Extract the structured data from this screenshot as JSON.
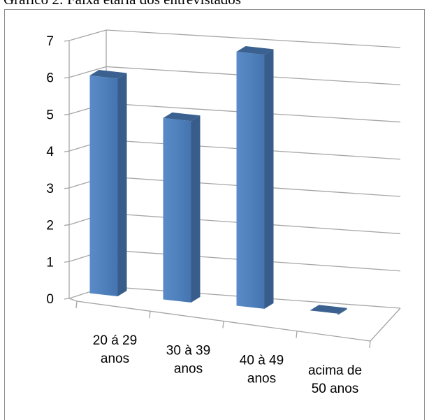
{
  "chart_data": {
    "type": "bar",
    "title": "Gráfico 2: Faixa etária dos entrevistados",
    "categories": [
      [
        "20 á 29",
        "anos"
      ],
      [
        "30 à 39",
        "anos"
      ],
      [
        "40 à 49",
        "anos"
      ],
      [
        "acima de",
        "50 anos"
      ]
    ],
    "values": [
      6,
      5,
      7,
      0
    ],
    "ylim": [
      0,
      7
    ],
    "yticks": [
      "0",
      "1",
      "2",
      "3",
      "4",
      "5",
      "6",
      "7"
    ],
    "grid": true,
    "legend": "none",
    "colors": {
      "bar_front": "#4f81bd",
      "bar_side": "#385d8a",
      "bar_top": "#3a6190",
      "grid": "#a6a6a6"
    }
  }
}
